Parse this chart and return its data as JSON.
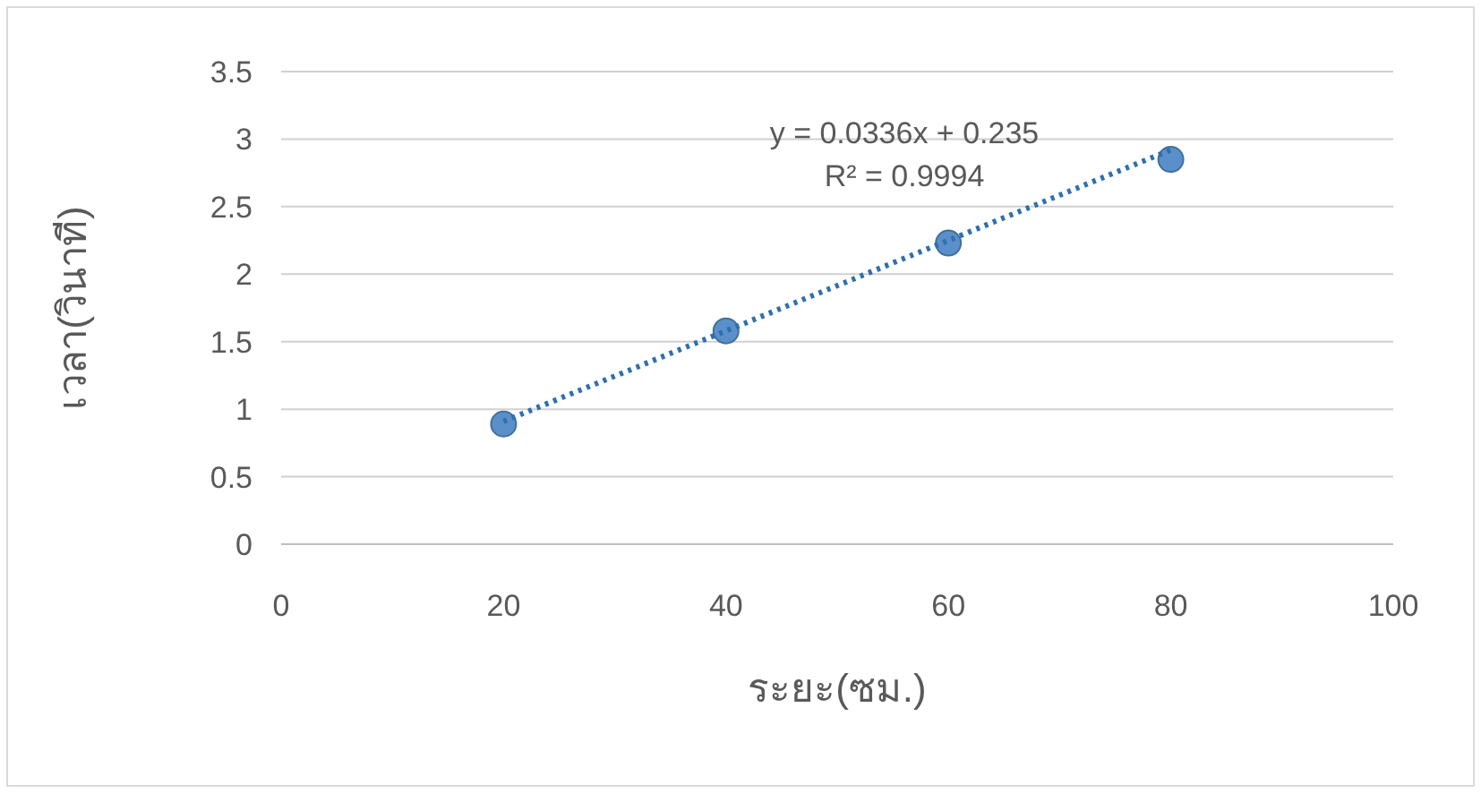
{
  "chart_data": {
    "type": "scatter",
    "xlabel": "ระยะ(ซม.)",
    "ylabel": "เวลา(วินาที)",
    "xlim": [
      0,
      100
    ],
    "xticks": [
      0,
      20,
      40,
      60,
      80,
      100
    ],
    "ylim": [
      0,
      3.5
    ],
    "yticks": [
      0,
      0.5,
      1,
      1.5,
      2,
      2.5,
      3,
      3.5
    ],
    "grid": "y",
    "marker": "circle",
    "series": [
      {
        "type": "scatter",
        "color": "#5b8fc9",
        "x": [
          20,
          40,
          60,
          80
        ],
        "values": [
          0.89,
          1.58,
          2.23,
          2.85
        ]
      },
      {
        "type": "line",
        "color": "#2e6fb0",
        "line_style": "dotted",
        "marker": "none",
        "x": [
          20,
          80
        ],
        "values": [
          0.91,
          2.92
        ]
      }
    ],
    "annotations": [
      "y = 0.0336x + 0.235",
      "R² = 0.9994"
    ]
  }
}
